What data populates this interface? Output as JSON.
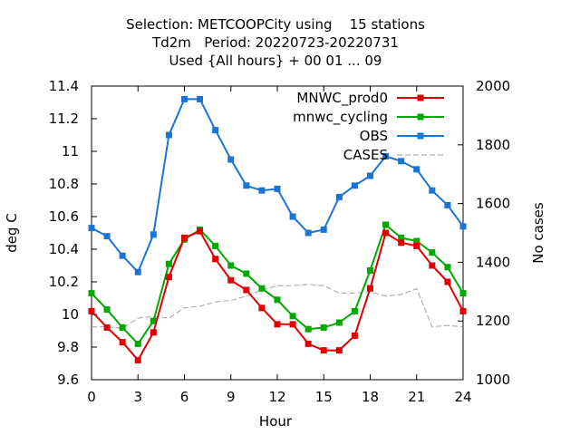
{
  "chart_data": {
    "type": "line",
    "title_lines": [
      "Selection: METCOOPCity using    15 stations",
      "Td2m   Period: 20220723-20220731",
      "Used {All hours} + 00 01 ... 09"
    ],
    "xlabel": "Hour",
    "ylabel": "deg C",
    "y2label": "No cases",
    "xlim": [
      0,
      24
    ],
    "ylim": [
      9.6,
      11.4
    ],
    "y2lim": [
      1000,
      2000
    ],
    "x_ticks": [
      0,
      3,
      6,
      9,
      12,
      15,
      18,
      21,
      24
    ],
    "y_ticks": [
      9.6,
      9.8,
      10,
      10.2,
      10.4,
      10.6,
      10.8,
      11,
      11.2,
      11.4
    ],
    "y_tick_labels": [
      "9.6",
      "9.8",
      "10",
      "10.2",
      "10.4",
      "10.6",
      "10.8",
      "11",
      "11.2",
      "11.4"
    ],
    "y2_ticks": [
      1000,
      1200,
      1400,
      1600,
      1800,
      2000
    ],
    "legend_position": "top-right",
    "grid": false,
    "x": [
      0,
      1,
      2,
      3,
      4,
      5,
      6,
      7,
      8,
      9,
      10,
      11,
      12,
      13,
      14,
      15,
      16,
      17,
      18,
      19,
      20,
      21,
      22,
      23,
      24
    ],
    "series": [
      {
        "name": "MNWC_prod0",
        "color": "#e00000",
        "axis": "left",
        "marker": "square",
        "values": [
          10.02,
          9.92,
          9.83,
          9.72,
          9.89,
          10.23,
          10.47,
          10.51,
          10.34,
          10.21,
          10.15,
          10.04,
          9.94,
          9.94,
          9.82,
          9.78,
          9.78,
          9.87,
          10.16,
          10.5,
          10.44,
          10.42,
          10.3,
          10.2,
          10.02
        ]
      },
      {
        "name": "mnwc_cycling",
        "color": "#00a800",
        "axis": "left",
        "marker": "square",
        "values": [
          10.13,
          10.03,
          9.92,
          9.82,
          9.96,
          10.31,
          10.46,
          10.52,
          10.42,
          10.3,
          10.25,
          10.16,
          10.09,
          9.99,
          9.91,
          9.92,
          9.95,
          10.02,
          10.27,
          10.55,
          10.47,
          10.45,
          10.38,
          10.29,
          10.13
        ]
      },
      {
        "name": "OBS",
        "color": "#1a74d6",
        "axis": "left",
        "marker": "square",
        "values": [
          10.53,
          10.48,
          10.36,
          10.26,
          10.49,
          11.1,
          11.32,
          11.32,
          11.13,
          10.95,
          10.79,
          10.76,
          10.77,
          10.6,
          10.5,
          10.52,
          10.72,
          10.79,
          10.85,
          10.97,
          10.94,
          10.89,
          10.76,
          10.67,
          10.54
        ]
      },
      {
        "name": "CASES",
        "color": "#a0a0a0",
        "axis": "right",
        "dashed": true,
        "values": [
          1180,
          1180,
          1175,
          1210,
          1215,
          1210,
          1245,
          1250,
          1265,
          1270,
          1285,
          1305,
          1320,
          1320,
          1325,
          1320,
          1295,
          1295,
          1300,
          1285,
          1290,
          1310,
          1180,
          1185,
          1180
        ]
      }
    ]
  }
}
